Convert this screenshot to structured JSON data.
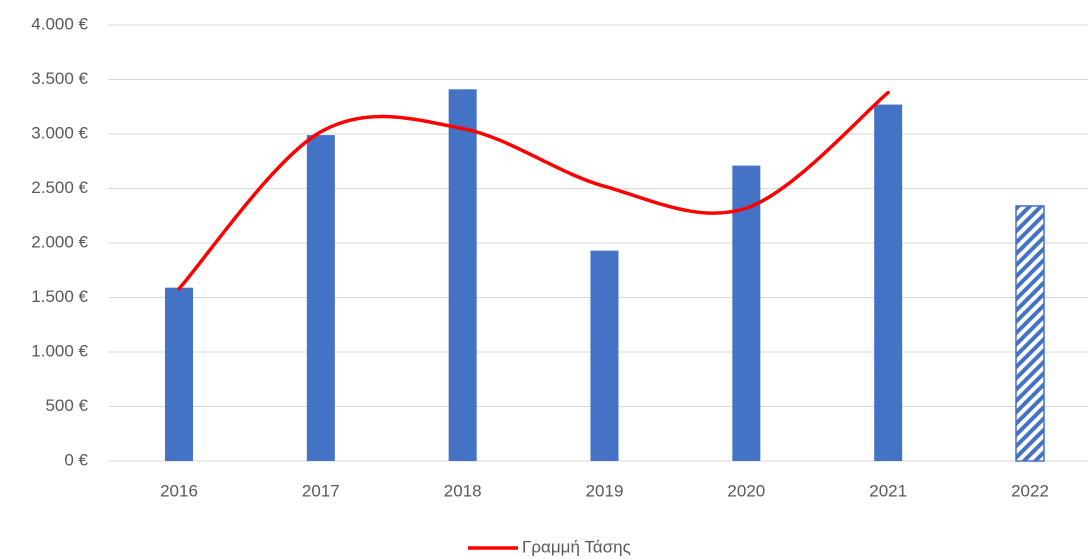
{
  "chart_data": {
    "type": "bar",
    "categories": [
      "2016",
      "2017",
      "2018",
      "2019",
      "2020",
      "2021",
      "2022"
    ],
    "series": [
      {
        "type": "bar",
        "color": "#4472c4",
        "values": [
          1590,
          2990,
          3410,
          1930,
          2710,
          3270,
          2340
        ],
        "hatched": [
          false,
          false,
          false,
          false,
          false,
          false,
          true
        ]
      },
      {
        "type": "line",
        "name": "Γραμμή Τάσης",
        "color": "#ff0000",
        "smooth": true,
        "values": [
          1580,
          3020,
          3050,
          2520,
          2320,
          3380,
          null
        ]
      }
    ],
    "ylim": [
      0,
      4000
    ],
    "yticks": [
      {
        "value": 0,
        "label": "0 €"
      },
      {
        "value": 500,
        "label": "500 €"
      },
      {
        "value": 1000,
        "label": "1.000 €"
      },
      {
        "value": 1500,
        "label": "1.500 €"
      },
      {
        "value": 2000,
        "label": "2.000 €"
      },
      {
        "value": 2500,
        "label": "2.500 €"
      },
      {
        "value": 3000,
        "label": "3.000 €"
      },
      {
        "value": 3500,
        "label": "3.500 €"
      },
      {
        "value": 4000,
        "label": "4.000 €"
      }
    ],
    "grid": true,
    "legend": "bottom"
  }
}
